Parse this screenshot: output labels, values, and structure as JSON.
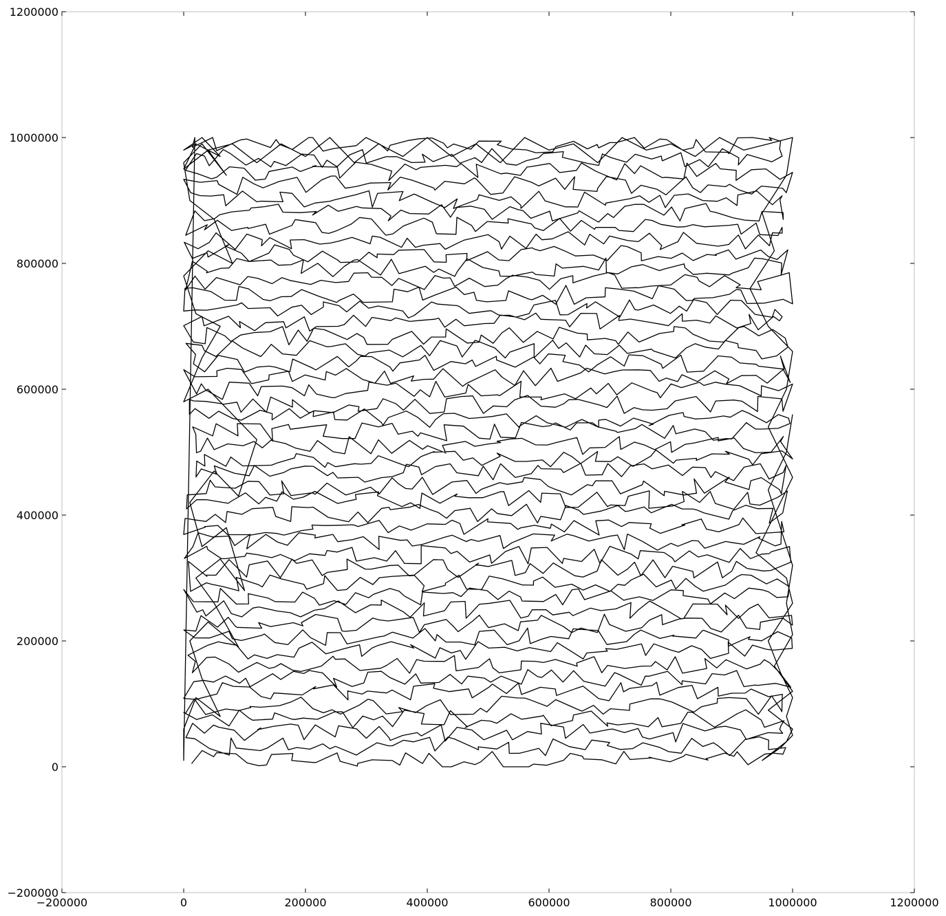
{
  "chart_data": {
    "type": "line",
    "title": "",
    "xlabel": "",
    "ylabel": "",
    "xlim": [
      -200000,
      1200000
    ],
    "ylim": [
      -200000,
      1200000
    ],
    "xticks": [
      -200000,
      0,
      200000,
      400000,
      600000,
      800000,
      1000000,
      1200000
    ],
    "yticks": [
      -200000,
      0,
      200000,
      400000,
      600000,
      800000,
      1000000,
      1200000
    ],
    "xtick_labels": [
      "−200000",
      "0",
      "200000",
      "400000",
      "600000",
      "800000",
      "1000000",
      "1200000"
    ],
    "ytick_labels": [
      "−200000",
      "0",
      "200000",
      "400000",
      "600000",
      "800000",
      "1000000",
      "1200000"
    ],
    "grid": false,
    "legend": "none",
    "line_color": "#000000",
    "series": [
      {
        "x": [
          0,
          0,
          20000,
          60000,
          30000,
          10000,
          40000,
          90000,
          50000,
          20000,
          60000,
          100000,
          70000,
          30000,
          10000,
          50000,
          90000,
          120000,
          80000,
          40000,
          0,
          30000,
          60000,
          20000,
          0,
          40000,
          80000,
          50000,
          10000,
          0,
          30000,
          70000,
          40000,
          0,
          20000,
          60000,
          30000,
          0,
          20000,
          0,
          40000,
          80000,
          120000,
          160000,
          200000,
          240000,
          280000,
          320000,
          360000,
          400000,
          440000,
          480000,
          520000,
          560000,
          600000,
          640000,
          680000,
          720000,
          760000,
          800000,
          840000,
          880000,
          920000,
          960000,
          1000000,
          990000,
          950000,
          970000,
          930000,
          960000,
          1000000,
          990000,
          960000,
          980000,
          1000000,
          970000,
          940000,
          990000,
          1000000,
          960000,
          980000,
          1000000,
          990000,
          1000000,
          980000,
          950000,
          990000,
          1000000,
          960000,
          1000000,
          970000,
          1000000,
          990000,
          1000000,
          980000,
          960000,
          990000,
          1000000
        ],
        "y": [
          10000,
          60000,
          110000,
          80000,
          140000,
          200000,
          230000,
          190000,
          260000,
          300000,
          330000,
          280000,
          380000,
          350000,
          420000,
          470000,
          430000,
          520000,
          560000,
          600000,
          580000,
          650000,
          700000,
          720000,
          780000,
          820000,
          800000,
          870000,
          900000,
          960000,
          990000,
          940000,
          980000,
          950000,
          990000,
          970000,
          1000000,
          980000,
          990000,
          950000,
          980000,
          990000,
          960000,
          990000,
          970000,
          1000000,
          960000,
          990000,
          970000,
          1000000,
          970000,
          990000,
          960000,
          1000000,
          980000,
          990000,
          960000,
          1000000,
          980000,
          990000,
          970000,
          1000000,
          980000,
          990000,
          1000000,
          940000,
          880000,
          820000,
          760000,
          700000,
          660000,
          600000,
          540000,
          500000,
          460000,
          400000,
          340000,
          300000,
          260000,
          200000,
          150000,
          110000,
          80000,
          50000,
          30000,
          10000,
          40000,
          60000,
          90000,
          120000,
          160000,
          210000,
          260000,
          320000,
          380000,
          440000,
          500000,
          560000
        ]
      }
    ]
  }
}
